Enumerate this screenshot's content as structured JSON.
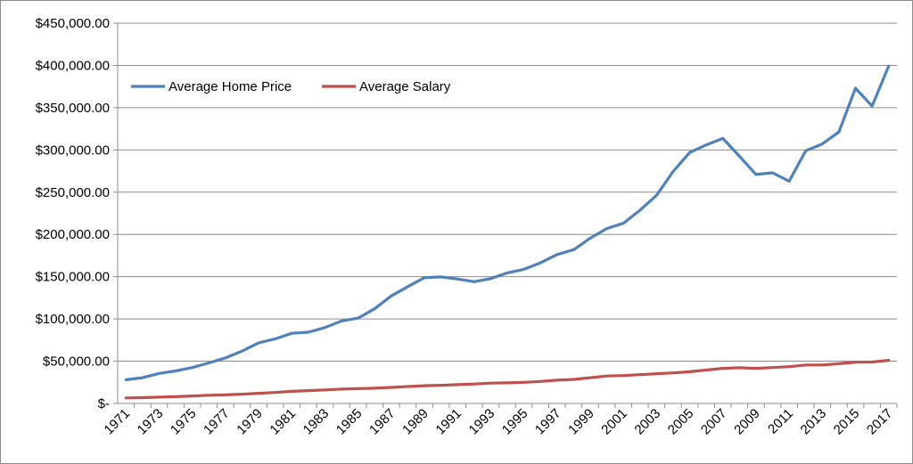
{
  "chart_data": {
    "type": "line",
    "title": "",
    "xlabel": "",
    "ylabel": "",
    "ylim": [
      0,
      450000
    ],
    "yticks": [
      0,
      50000,
      100000,
      150000,
      200000,
      250000,
      300000,
      350000,
      400000,
      450000
    ],
    "ytick_labels": [
      "$-",
      "$50,000.00",
      "$100,000.00",
      "$150,000.00",
      "$200,000.00",
      "$250,000.00",
      "$300,000.00",
      "$350,000.00",
      "$400,000.00",
      "$450,000.00"
    ],
    "x": [
      1971,
      1972,
      1973,
      1974,
      1975,
      1976,
      1977,
      1978,
      1979,
      1980,
      1981,
      1982,
      1983,
      1984,
      1985,
      1986,
      1987,
      1988,
      1989,
      1990,
      1991,
      1992,
      1993,
      1994,
      1995,
      1996,
      1997,
      1998,
      1999,
      2000,
      2001,
      2002,
      2003,
      2004,
      2005,
      2006,
      2007,
      2008,
      2009,
      2010,
      2011,
      2012,
      2013,
      2014,
      2015,
      2016,
      2017
    ],
    "xtick_labels": [
      "1971",
      "1973",
      "1975",
      "1977",
      "1979",
      "1981",
      "1983",
      "1985",
      "1987",
      "1989",
      "1991",
      "1993",
      "1995",
      "1997",
      "1999",
      "2001",
      "2003",
      "2005",
      "2007",
      "2009",
      "2011",
      "2013",
      "2015",
      "2017"
    ],
    "grid": true,
    "legend_position": "top-left",
    "series": [
      {
        "name": "Average Home Price",
        "color": "#4f81bd",
        "values": [
          28000,
          30500,
          35500,
          38500,
          42500,
          48000,
          54000,
          62000,
          71800,
          76400,
          83000,
          84300,
          89800,
          97600,
          101000,
          112000,
          127200,
          138300,
          148800,
          149800,
          147200,
          144100,
          147700,
          154500,
          158700,
          166400,
          176200,
          181900,
          195600,
          207000,
          213200,
          228700,
          246300,
          274500,
          297000,
          305900,
          313600,
          292600,
          270900,
          272900,
          262900,
          299000,
          307100,
          321200,
          373100,
          351800,
          399200
        ]
      },
      {
        "name": "Average Salary",
        "color": "#c0504d",
        "values": [
          6500,
          6800,
          7500,
          8000,
          8800,
          9700,
          10200,
          11000,
          12000,
          13000,
          14300,
          15200,
          16000,
          17000,
          17500,
          18000,
          19000,
          20000,
          21000,
          21500,
          22200,
          23000,
          24000,
          24300,
          25000,
          26000,
          27500,
          28500,
          30500,
          32500,
          33000,
          34000,
          35200,
          36200,
          37500,
          39500,
          41500,
          42300,
          41500,
          42500,
          43500,
          45500,
          45500,
          47000,
          48800,
          49000,
          51000
        ]
      }
    ]
  }
}
